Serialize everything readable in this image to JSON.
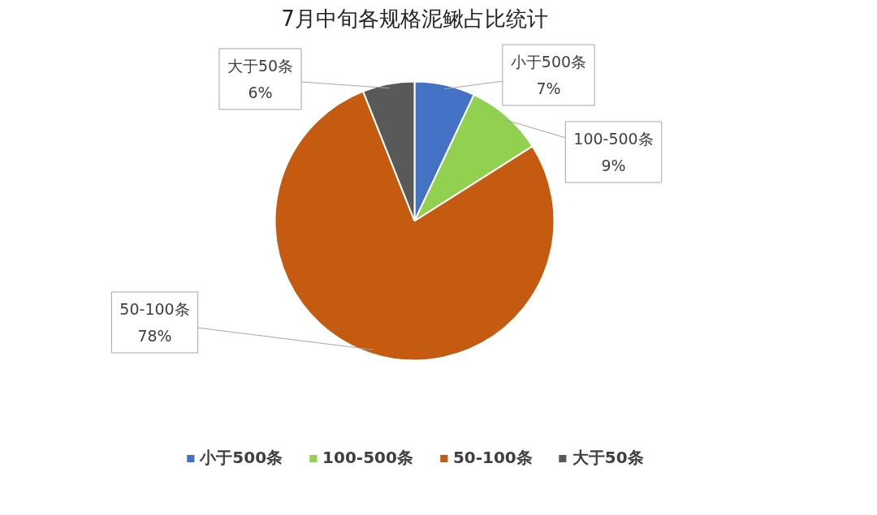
{
  "chart_data": {
    "type": "pie",
    "title": "7月中旬各规格泥鳅占比统计",
    "categories": [
      "小于500条",
      "100-500条",
      "50-100条",
      "大于50条"
    ],
    "values": [
      7,
      9,
      78,
      6
    ],
    "colors": [
      "#4472c4",
      "#92d050",
      "#c55a11",
      "#595959"
    ],
    "value_labels": [
      "7%",
      "9%",
      "78%",
      "6%"
    ],
    "legend": "bottom"
  }
}
